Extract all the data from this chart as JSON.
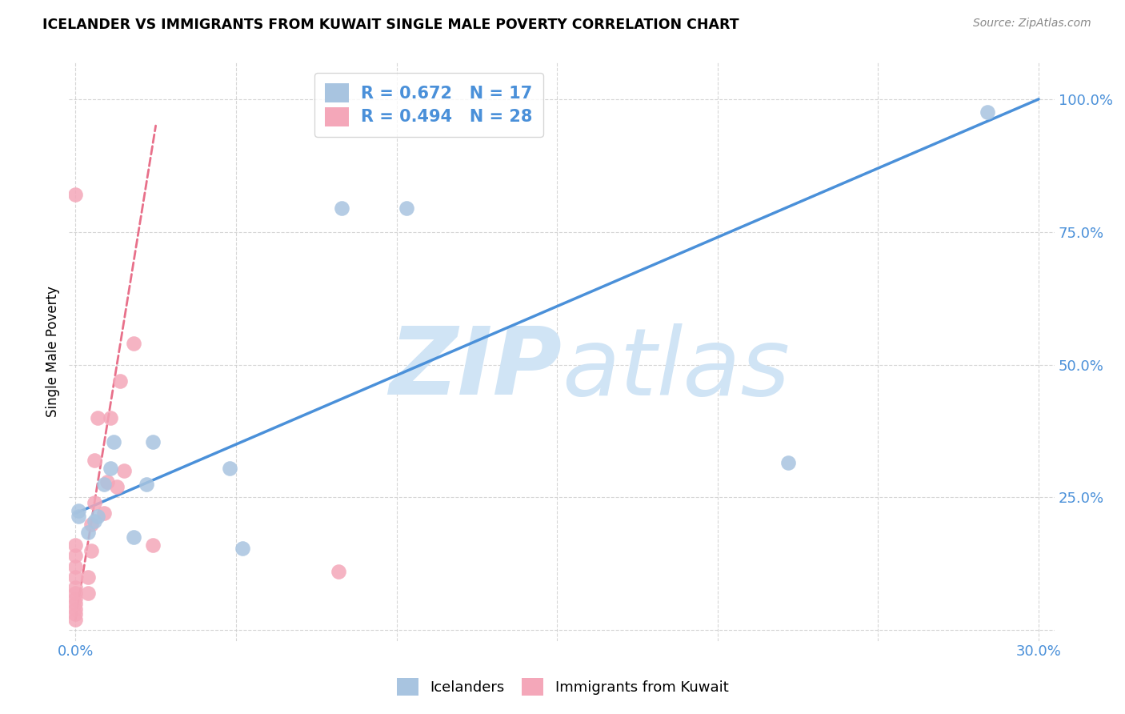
{
  "title": "ICELANDER VS IMMIGRANTS FROM KUWAIT SINGLE MALE POVERTY CORRELATION CHART",
  "source": "Source: ZipAtlas.com",
  "ylabel": "Single Male Poverty",
  "x_min": -0.002,
  "x_max": 0.305,
  "y_min": -0.02,
  "y_max": 1.07,
  "x_ticks": [
    0.0,
    0.05,
    0.1,
    0.15,
    0.2,
    0.25,
    0.3
  ],
  "y_ticks": [
    0.0,
    0.25,
    0.5,
    0.75,
    1.0
  ],
  "y_tick_labels": [
    "",
    "25.0%",
    "50.0%",
    "75.0%",
    "100.0%"
  ],
  "icelanders_R": 0.672,
  "icelanders_N": 17,
  "kuwait_R": 0.494,
  "kuwait_N": 28,
  "icelander_color": "#a8c4e0",
  "kuwait_color": "#f4a7b9",
  "icelander_line_color": "#4a90d9",
  "kuwait_line_color": "#e8708a",
  "watermark_color": "#d0e4f5",
  "ice_line_x0": 0.0,
  "ice_line_y0": 0.22,
  "ice_line_x1": 0.3,
  "ice_line_y1": 1.0,
  "kuw_line_x0": 0.0,
  "kuw_line_y0": 0.02,
  "kuw_line_x1": 0.025,
  "kuw_line_y1": 0.95,
  "icelanders_x": [
    0.001,
    0.001,
    0.004,
    0.006,
    0.007,
    0.009,
    0.011,
    0.012,
    0.018,
    0.022,
    0.024,
    0.048,
    0.052,
    0.083,
    0.103,
    0.222,
    0.284
  ],
  "icelanders_y": [
    0.215,
    0.225,
    0.185,
    0.205,
    0.215,
    0.275,
    0.305,
    0.355,
    0.175,
    0.275,
    0.355,
    0.305,
    0.155,
    0.795,
    0.795,
    0.315,
    0.975
  ],
  "kuwait_x": [
    0.0,
    0.0,
    0.0,
    0.0,
    0.0,
    0.0,
    0.0,
    0.0,
    0.0,
    0.0,
    0.0,
    0.0,
    0.004,
    0.004,
    0.005,
    0.005,
    0.006,
    0.006,
    0.007,
    0.009,
    0.01,
    0.011,
    0.013,
    0.014,
    0.015,
    0.018,
    0.024,
    0.082
  ],
  "kuwait_y": [
    0.02,
    0.03,
    0.04,
    0.05,
    0.06,
    0.07,
    0.08,
    0.1,
    0.12,
    0.14,
    0.16,
    0.82,
    0.07,
    0.1,
    0.15,
    0.2,
    0.24,
    0.32,
    0.4,
    0.22,
    0.28,
    0.4,
    0.27,
    0.47,
    0.3,
    0.54,
    0.16,
    0.11
  ]
}
